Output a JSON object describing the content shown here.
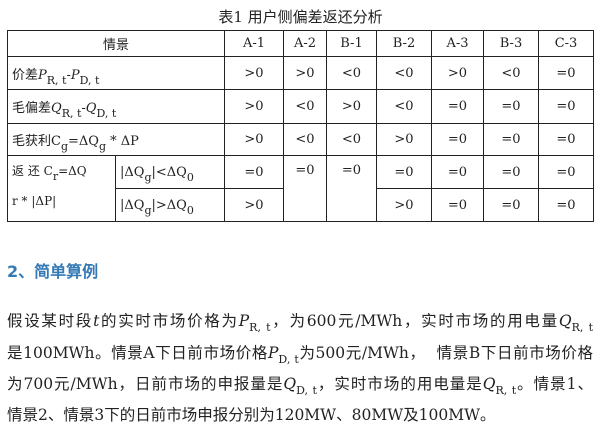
{
  "caption": "表1 用户侧偏差返还分析",
  "table": {
    "header": {
      "label": "情景",
      "cols": [
        "A-1",
        "A-2",
        "B-1",
        "B-2",
        "A-3",
        "B-3",
        "C-3"
      ]
    },
    "rows": [
      {
        "label_pre": "价差",
        "sym1": "P",
        "sub1": "R, t",
        "op": "-",
        "sym2": "P",
        "sub2": "D, t",
        "values": [
          ">0",
          ">0",
          "<0",
          "<0",
          ">0",
          "<0",
          "=0"
        ]
      },
      {
        "label_pre": "毛偏差",
        "sym1": "Q",
        "sub1": "R, t",
        "op": "-",
        "sym2": "Q",
        "sub2": "D, t",
        "values": [
          ">0",
          "<0",
          ">0",
          "<0",
          "=0",
          "=0",
          "=0"
        ]
      },
      {
        "label": "毛获利C",
        "sub": "g",
        "mid": "=ΔQ",
        "sub2": "g",
        "tail": " * ΔP",
        "values": [
          ">0",
          "<0",
          "<0",
          ">0",
          "=0",
          "=0",
          "=0"
        ]
      }
    ],
    "return_row": {
      "label_a": "返 还 C",
      "sub_a": "r",
      "label_b": "=ΔQ",
      "label_c": "r * |ΔP|",
      "cond1": {
        "pre": "|ΔQ",
        "sub": "g",
        "mid": "|<ΔQ",
        "sub2": "0"
      },
      "cond2": {
        "pre": "|ΔQ",
        "sub": "g",
        "mid": "|>ΔQ",
        "sub2": "0"
      },
      "a1": [
        "=0",
        ">0"
      ],
      "merged": [
        "=0",
        "=0"
      ],
      "rest1": [
        "=0",
        "=0",
        "=0",
        "=0"
      ],
      "rest2": [
        ">0",
        "=0",
        "=0",
        "=0"
      ]
    }
  },
  "section": {
    "heading": "2、简单算例",
    "heading_color": "#3579b5"
  },
  "paragraph": {
    "l1": [
      "假设某时段",
      "t",
      "的实时市场价格为",
      "P",
      "R, t",
      "，为600元/MWh，实时市场的用电量",
      "Q",
      "R, t"
    ],
    "l2": [
      "是100MWh。情景A下日前市场价格",
      "P",
      "D, t",
      "为500元/MWh，  情景B下日前市场价格"
    ],
    "l3": [
      "为700元/MWh，日前市场的申报量是",
      "Q",
      "D, t",
      "，实时市场的用电量是",
      "Q",
      "R, t",
      "。情景1、"
    ],
    "l4": "情景2、情景3下的日前市场申报分别为120MW、80MW及100MW。"
  }
}
